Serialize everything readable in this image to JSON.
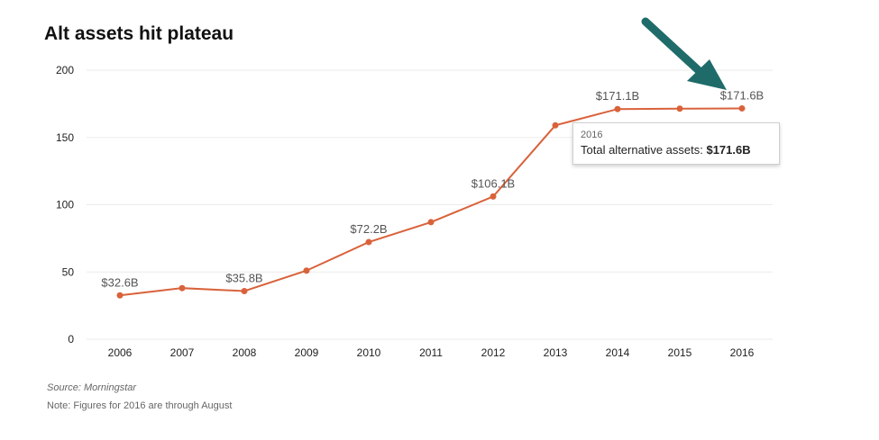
{
  "title": "Alt assets hit plateau",
  "source": "Source: Morningstar",
  "note": "Note: Figures for 2016 are through August",
  "tooltip": {
    "year": "2016",
    "label": "Total alternative assets: ",
    "value": "$171.6B"
  },
  "colors": {
    "line": "#d9623b",
    "arrow": "#1f6b6a",
    "grid": "#ebebeb"
  },
  "chart_data": {
    "type": "line",
    "title": "Alt assets hit plateau",
    "xlabel": "",
    "ylabel": "",
    "categories": [
      "2006",
      "2007",
      "2008",
      "2009",
      "2010",
      "2011",
      "2012",
      "2013",
      "2014",
      "2015",
      "2016"
    ],
    "series": [
      {
        "values": [
          32.6,
          38,
          35.8,
          51,
          72.2,
          87,
          106.1,
          159,
          171.1,
          171.4,
          171.6
        ]
      }
    ],
    "ylim": [
      0,
      200
    ],
    "yticks": [
      0,
      50,
      100,
      150,
      200
    ],
    "data_labels": [
      {
        "index": 0,
        "text": "$32.6B"
      },
      {
        "index": 2,
        "text": "$35.8B"
      },
      {
        "index": 4,
        "text": "$72.2B"
      },
      {
        "index": 6,
        "text": "$106.1B"
      },
      {
        "index": 8,
        "text": "$171.1B"
      },
      {
        "index": 10,
        "text": "$171.6B"
      }
    ],
    "grid": true,
    "legend": "none"
  }
}
